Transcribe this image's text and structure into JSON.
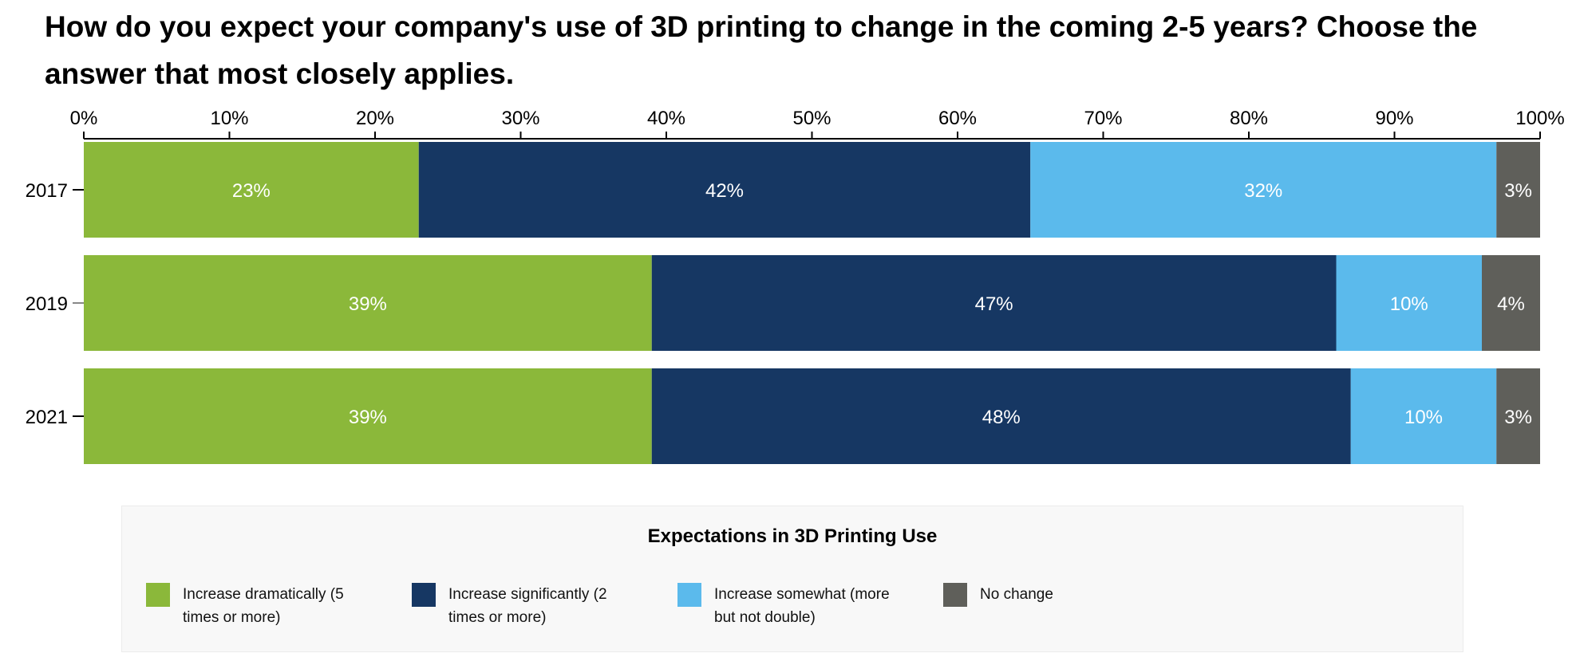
{
  "chart_data": {
    "type": "bar",
    "orientation": "horizontal",
    "stacked": true,
    "title": "How do you expect your company's use of 3D printing to change in the coming 2-5 years? Choose the answer that most closely applies.",
    "categories": [
      "2017",
      "2019",
      "2021"
    ],
    "series": [
      {
        "name": "Increase dramatically (5 times or more)",
        "color": "#8bb83a",
        "label_color": "#ffffff",
        "values": [
          23,
          39,
          39
        ],
        "labels": [
          "23%",
          "39%",
          "39%"
        ]
      },
      {
        "name": "Increase significantly (2 times or more)",
        "color": "#163763",
        "label_color": "#ffffff",
        "values": [
          42,
          47,
          48
        ],
        "labels": [
          "42%",
          "47%",
          "48%"
        ]
      },
      {
        "name": "Increase somewhat (more but not double)",
        "color": "#5bbaec",
        "label_color": "#ffffff",
        "values": [
          32,
          10,
          10
        ],
        "labels": [
          "32%",
          "10%",
          "10%"
        ]
      },
      {
        "name": "No change",
        "color": "#5f5f5a",
        "label_color": "#ffffff",
        "values": [
          3,
          4,
          3
        ],
        "labels": [
          "3%",
          "4%",
          "3%"
        ]
      }
    ],
    "xlim": [
      0,
      100
    ],
    "x_ticks": [
      0,
      10,
      20,
      30,
      40,
      50,
      60,
      70,
      80,
      90,
      100
    ],
    "x_tick_labels": [
      "0%",
      "10%",
      "20%",
      "30%",
      "40%",
      "50%",
      "60%",
      "70%",
      "80%",
      "90%",
      "100%"
    ],
    "x_axis_position": "top",
    "grid": false,
    "legend": {
      "title": "Expectations in 3D Printing Use",
      "placement": "bottom"
    }
  }
}
